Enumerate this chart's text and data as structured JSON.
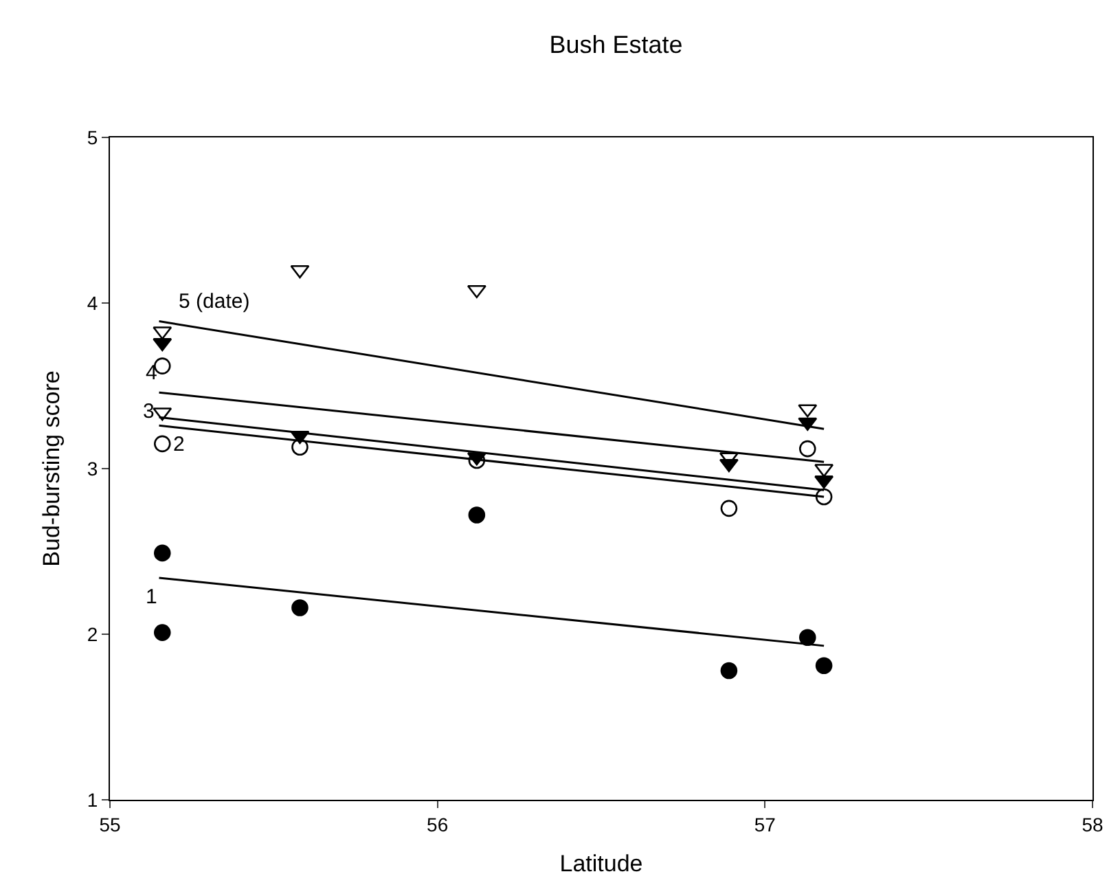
{
  "chart_data": {
    "type": "scatter",
    "title": "Bush Estate",
    "xlabel": "Latitude",
    "ylabel": "Bud-bursting score",
    "xlim": [
      55,
      58
    ],
    "xticks": [
      55,
      56,
      57,
      58
    ],
    "ylim": [
      1,
      5
    ],
    "yticks": [
      1,
      2,
      3,
      4,
      5
    ],
    "series": [
      {
        "marker": "triangle",
        "color": "#ffffff",
        "x": [
          55.16,
          55.16,
          55.58,
          56.12,
          56.89,
          57.13,
          57.18
        ],
        "values": [
          3.83,
          3.34,
          4.2,
          4.08,
          3.07,
          3.36,
          3.0
        ]
      },
      {
        "marker": "circle",
        "color": "#ffffff",
        "x": [
          55.16,
          55.16,
          55.58,
          56.12,
          56.89,
          57.13,
          57.18
        ],
        "values": [
          3.62,
          3.15,
          3.13,
          3.05,
          2.76,
          3.12,
          2.83
        ]
      },
      {
        "marker": "triangle",
        "color": "#000000",
        "x": [
          55.16,
          55.58,
          56.12,
          56.89,
          57.13,
          57.18
        ],
        "values": [
          3.76,
          3.2,
          3.07,
          3.03,
          3.28,
          2.93
        ]
      },
      {
        "marker": "circle",
        "color": "#000000",
        "x": [
          55.16,
          55.16,
          55.58,
          56.12,
          56.89,
          57.13,
          57.18
        ],
        "values": [
          2.49,
          2.01,
          2.16,
          2.72,
          1.78,
          1.98,
          1.81
        ]
      },
      {
        "type": "line",
        "name": "1",
        "color": "#000000",
        "x": [
          55.15,
          57.18
        ],
        "values": [
          2.34,
          1.93
        ]
      },
      {
        "type": "line",
        "name": "2",
        "color": "#000000",
        "x": [
          55.15,
          57.18
        ],
        "values": [
          3.26,
          2.83
        ]
      },
      {
        "type": "line",
        "name": "3",
        "color": "#000000",
        "x": [
          55.15,
          57.18
        ],
        "values": [
          3.31,
          2.87
        ]
      },
      {
        "type": "line",
        "name": "4",
        "color": "#000000",
        "x": [
          55.15,
          57.18
        ],
        "values": [
          3.46,
          3.04
        ]
      },
      {
        "type": "line",
        "name": "5 (date)",
        "color": "#000000",
        "x": [
          55.15,
          57.18
        ],
        "values": [
          3.89,
          3.24
        ]
      }
    ]
  }
}
